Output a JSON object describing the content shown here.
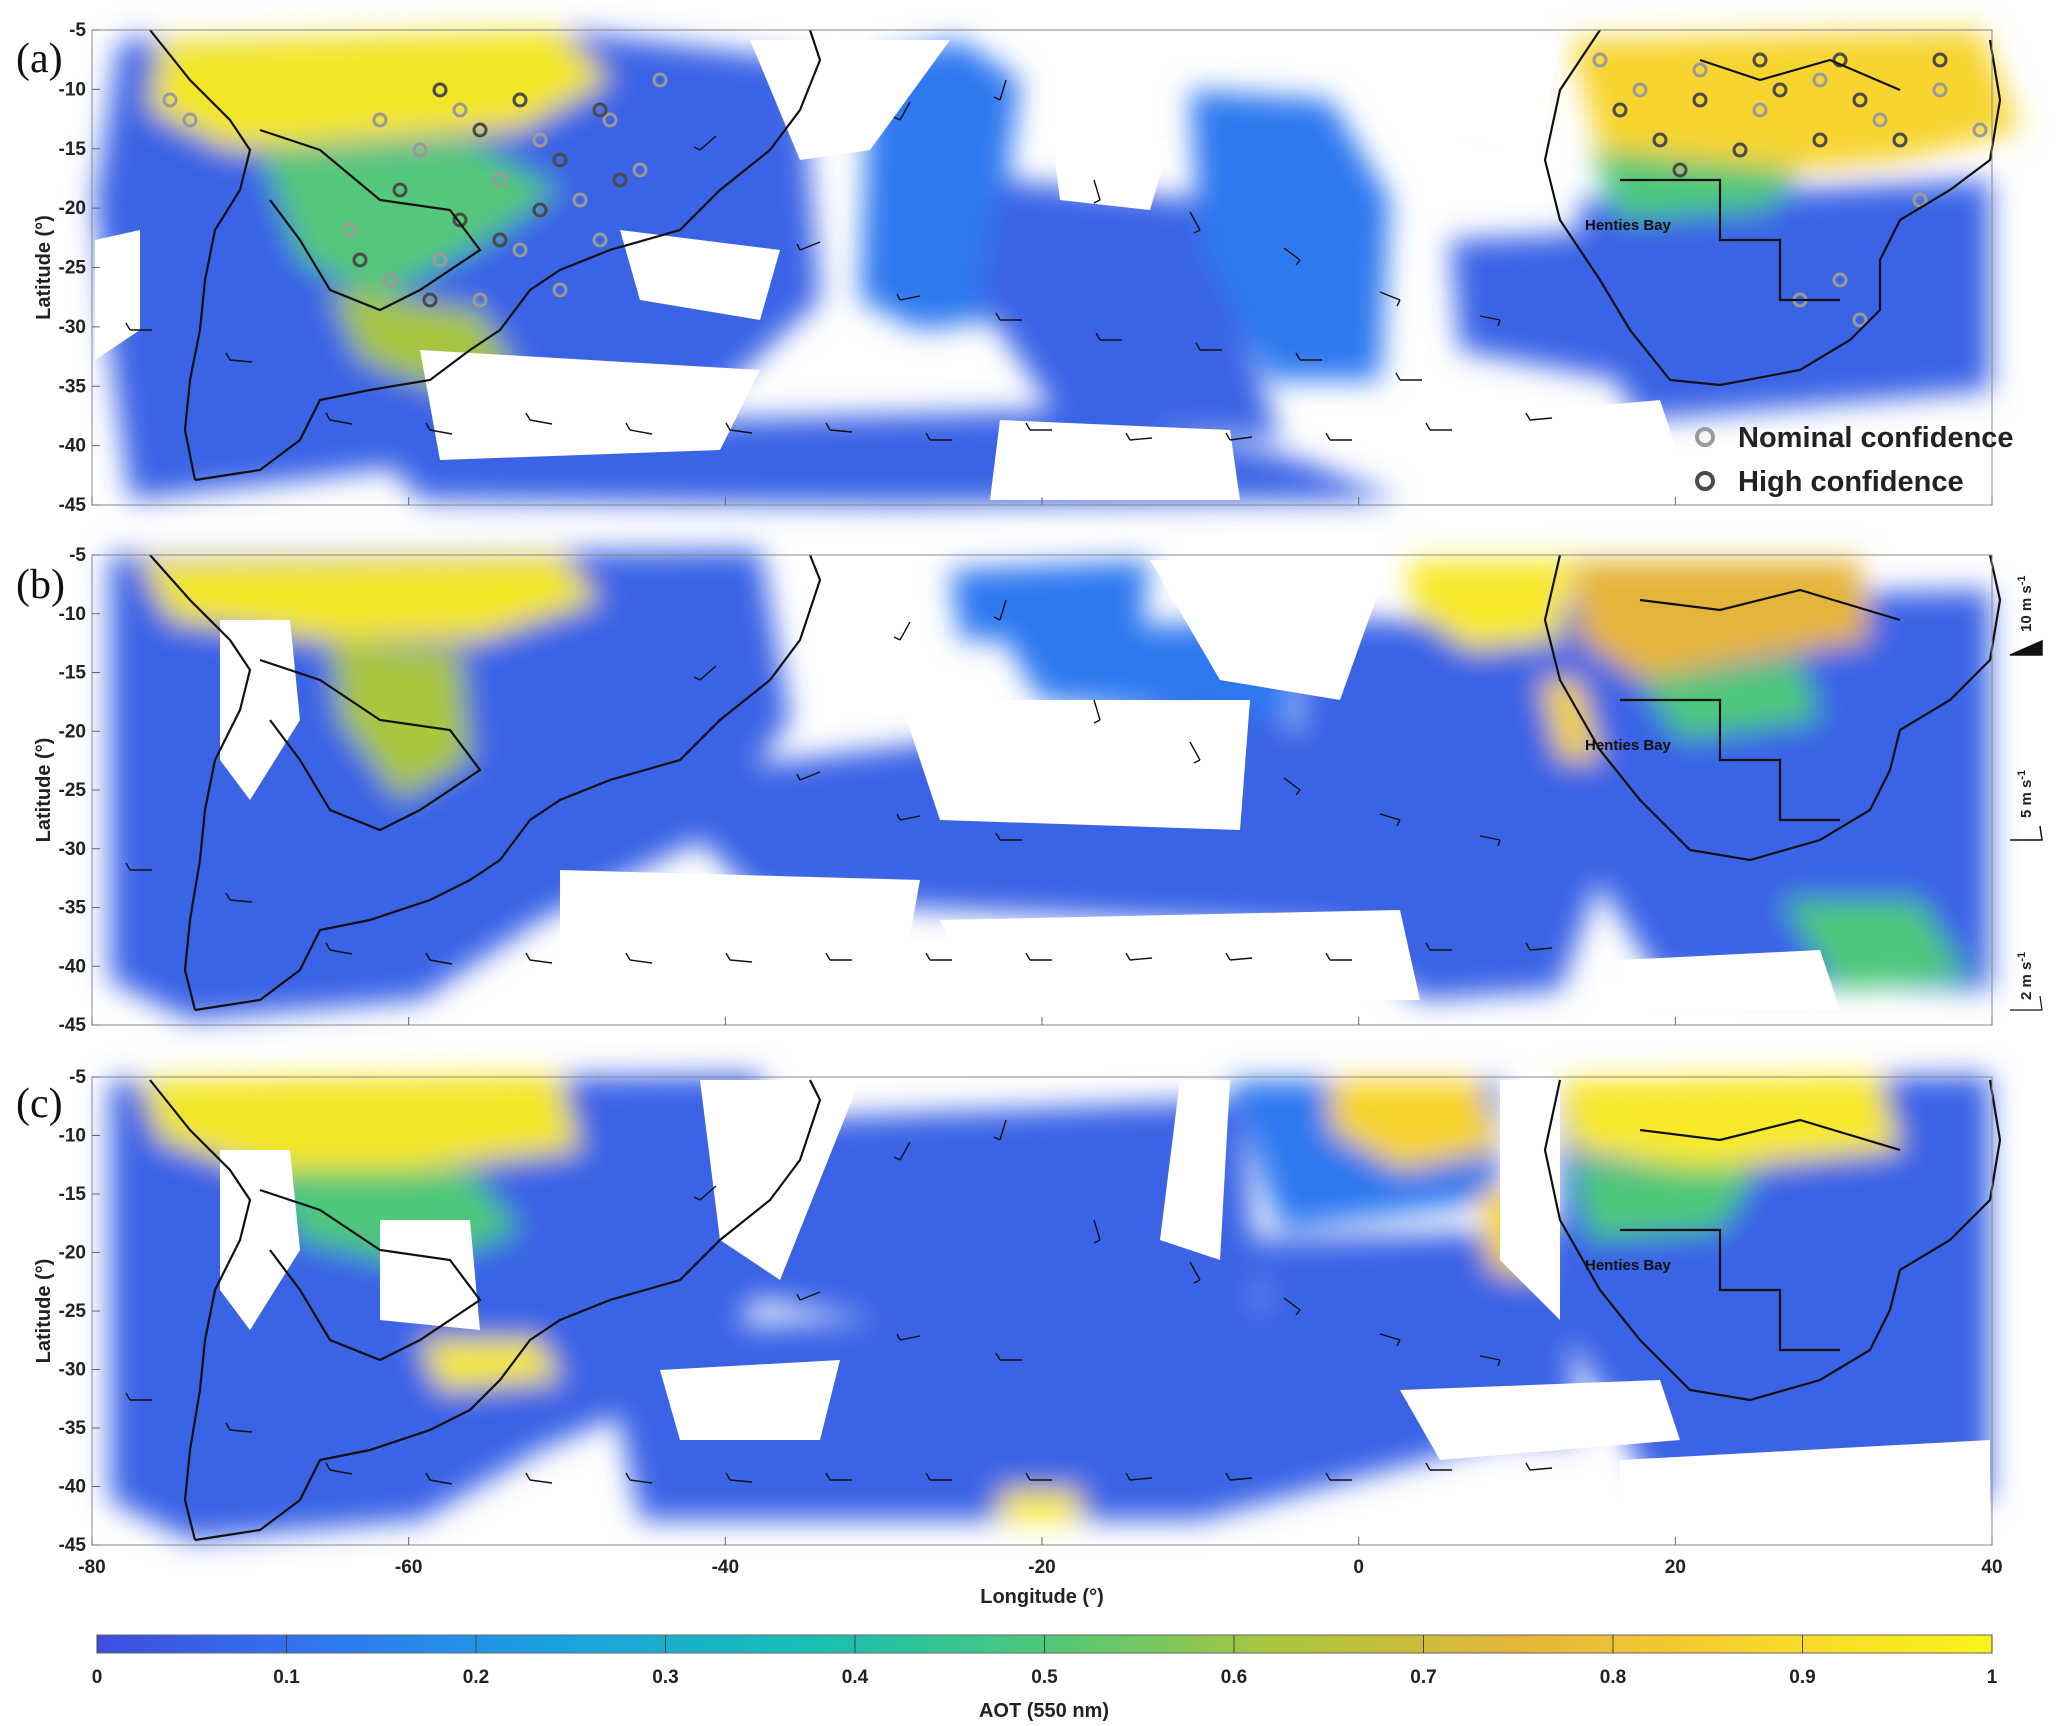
{
  "figure": {
    "x_axis_label": "Longitude (°)",
    "y_axis_label": "Latitude (°)",
    "x_ticks": [
      "-80",
      "-60",
      "-40",
      "-20",
      "0",
      "20",
      "40"
    ],
    "y_ticks": [
      "-5",
      "-10",
      "-15",
      "-20",
      "-25",
      "-30",
      "-35",
      "-40",
      "-45"
    ],
    "lon_range": [
      -80,
      40
    ],
    "lat_range": [
      -45,
      -5
    ]
  },
  "panels": [
    {
      "letter": "(a)",
      "place_label": "Henties Bay",
      "show_fire_points": true
    },
    {
      "letter": "(b)",
      "place_label": "Henties Bay",
      "show_fire_points": false
    },
    {
      "letter": "(c)",
      "place_label": "Henties Bay",
      "show_fire_points": false
    }
  ],
  "legend": {
    "nominal_label": "Nominal confidence",
    "high_label": "High confidence",
    "nominal_color": "#9a9a9a",
    "high_color": "#4a4a4a"
  },
  "wind_scale": [
    {
      "label": "10 m s",
      "superscript": "-1"
    },
    {
      "label": "5 m s",
      "superscript": "-1"
    },
    {
      "label": "2 m s",
      "superscript": "-1"
    }
  ],
  "colorbar": {
    "label": "AOT (550 nm)",
    "ticks": [
      "0",
      "0.1",
      "0.2",
      "0.3",
      "0.4",
      "0.5",
      "0.6",
      "0.7",
      "0.8",
      "0.9",
      "1"
    ],
    "range": [
      0,
      1
    ],
    "colors": [
      "#3e4de0",
      "#2f78f0",
      "#1aa3e0",
      "#19bfb2",
      "#4dc87a",
      "#a9c63e",
      "#e5b53a",
      "#f9d52c",
      "#f8f41c"
    ]
  },
  "henties_bay_location": {
    "lon": 14.3,
    "lat": -22.1
  }
}
